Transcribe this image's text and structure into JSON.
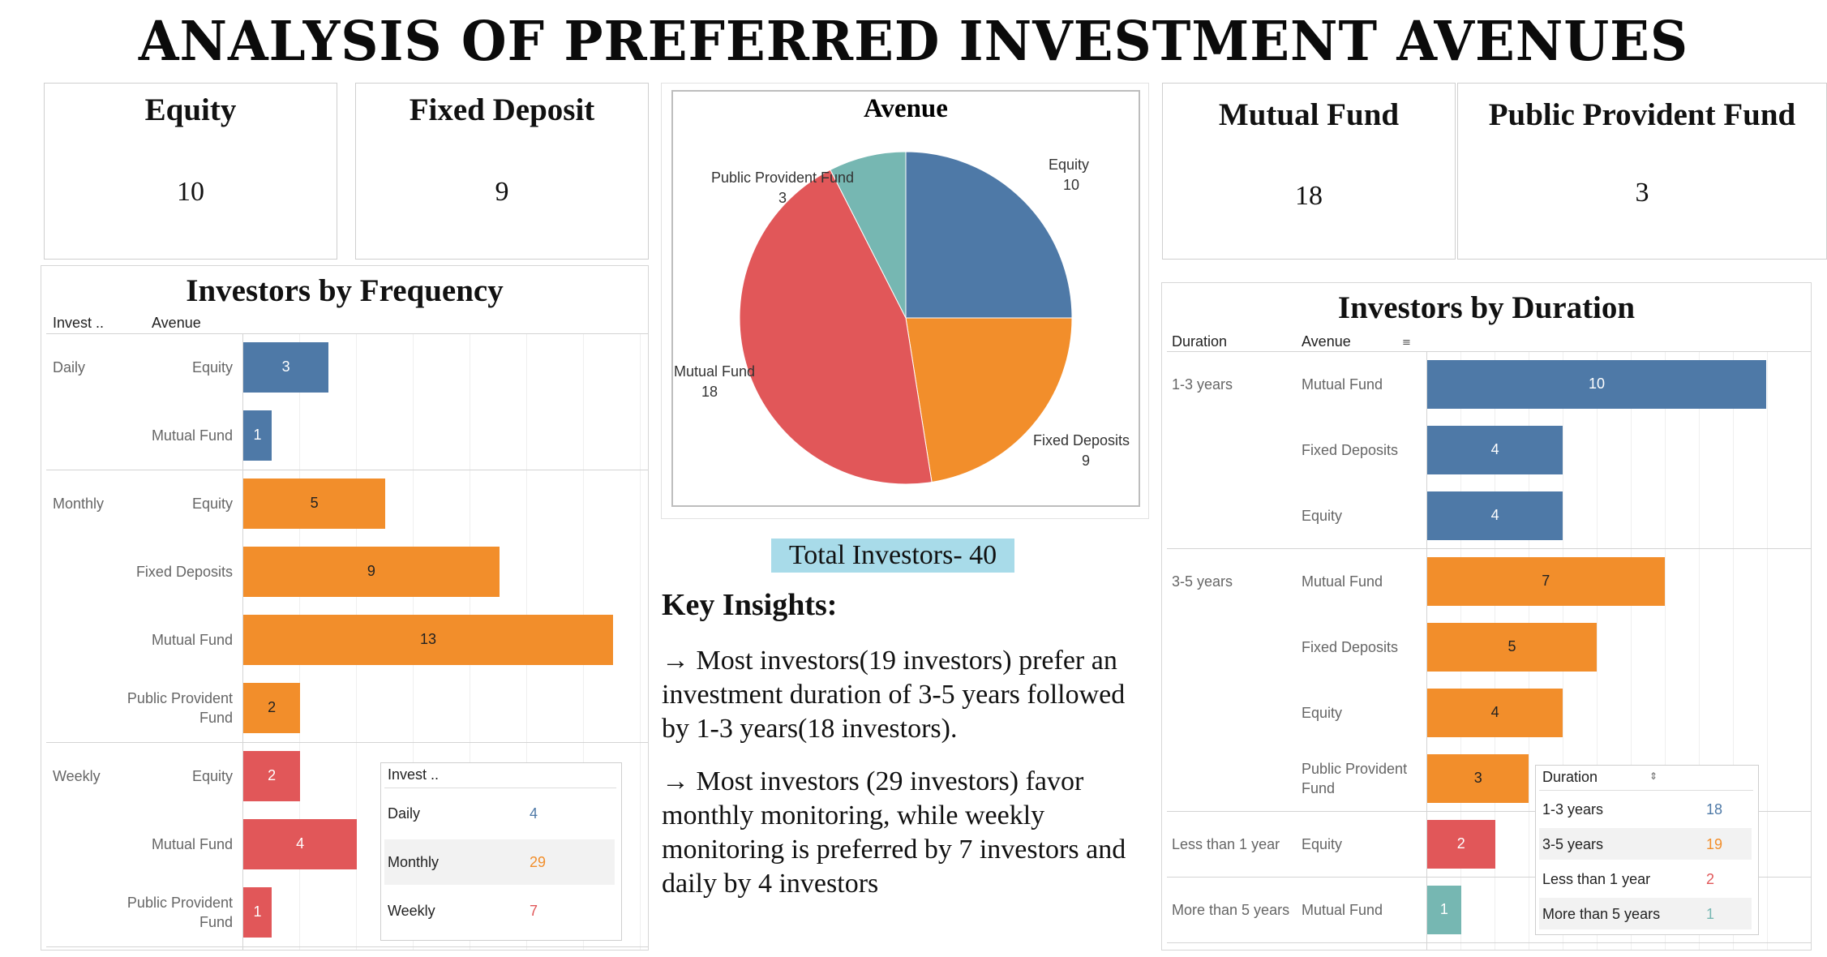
{
  "title": "ANALYSIS OF PREFERRED INVESTMENT AVENUES",
  "kpis": [
    {
      "label": "Equity",
      "value": "10"
    },
    {
      "label": "Fixed Deposit",
      "value": "9"
    },
    {
      "label": "Mutual Fund",
      "value": "18"
    },
    {
      "label": "Public Provident Fund",
      "value": "3"
    }
  ],
  "colors": {
    "blue": "#4e79a7",
    "orange": "#f28e2b",
    "red": "#e15759",
    "teal": "#76b7b2",
    "legend_blue": "#4e79a7",
    "legend_orange": "#f28e2b",
    "legend_red": "#e15759",
    "legend_teal": "#76b7b2"
  },
  "frequency_panel": {
    "title": "Investors by Frequency",
    "col_headers": [
      "Invest ..",
      "Avenue"
    ],
    "legend_header": "Invest ..",
    "legend": [
      {
        "label": "Daily",
        "value": "4"
      },
      {
        "label": "Monthly",
        "value": "29"
      },
      {
        "label": "Weekly",
        "value": "7"
      }
    ]
  },
  "duration_panel": {
    "title": "Investors by Duration",
    "col_headers": [
      "Duration",
      "Avenue"
    ],
    "legend_header": "Duration",
    "legend": [
      {
        "label": "1-3 years",
        "value": "18"
      },
      {
        "label": "3-5 years",
        "value": "19"
      },
      {
        "label": "Less than 1 year",
        "value": "2"
      },
      {
        "label": "More than 5 years",
        "value": "1"
      }
    ]
  },
  "summary": {
    "total": "Total Investors- 40",
    "insights_title": "Key Insights:",
    "insights": [
      "→ Most investors(19 investors) prefer an investment duration of 3-5 years followed by 1-3 years(18 investors).",
      "→ Most investors (29 investors) favor monthly monitoring, while weekly monitoring is preferred by 7 investors and daily by 4 investors"
    ]
  },
  "chart_data": [
    {
      "type": "pie",
      "title": "Avenue",
      "slices": [
        {
          "label": "Equity",
          "value": 10
        },
        {
          "label": "Fixed Deposits",
          "value": 9
        },
        {
          "label": "Mutual Fund",
          "value": 18
        },
        {
          "label": "Public Provident Fund",
          "value": 3
        }
      ]
    },
    {
      "type": "bar",
      "orientation": "horizontal",
      "title": "Investors by Frequency",
      "xlim": [
        0,
        13
      ],
      "groups": [
        {
          "name": "Daily",
          "color": "blue",
          "bars": [
            {
              "label": "Equity",
              "value": 3
            },
            {
              "label": "Mutual Fund",
              "value": 1
            }
          ]
        },
        {
          "name": "Monthly",
          "color": "orange",
          "bars": [
            {
              "label": "Equity",
              "value": 5
            },
            {
              "label": "Fixed Deposits",
              "value": 9
            },
            {
              "label": "Mutual Fund",
              "value": 13
            },
            {
              "label": "Public Provident Fund",
              "value": 2
            }
          ]
        },
        {
          "name": "Weekly",
          "color": "red",
          "bars": [
            {
              "label": "Equity",
              "value": 2
            },
            {
              "label": "Mutual Fund",
              "value": 4
            },
            {
              "label": "Public Provident Fund",
              "value": 1
            }
          ]
        }
      ]
    },
    {
      "type": "bar",
      "orientation": "horizontal",
      "title": "Investors by Duration",
      "xlim": [
        0,
        10
      ],
      "groups": [
        {
          "name": "1-3 years",
          "color": "blue",
          "bars": [
            {
              "label": "Mutual Fund",
              "value": 10
            },
            {
              "label": "Fixed Deposits",
              "value": 4
            },
            {
              "label": "Equity",
              "value": 4
            }
          ]
        },
        {
          "name": "3-5 years",
          "color": "orange",
          "bars": [
            {
              "label": "Mutual Fund",
              "value": 7
            },
            {
              "label": "Fixed Deposits",
              "value": 5
            },
            {
              "label": "Equity",
              "value": 4
            },
            {
              "label": "Public Provident Fund",
              "value": 3
            }
          ]
        },
        {
          "name": "Less than 1 year",
          "color": "red",
          "bars": [
            {
              "label": "Equity",
              "value": 2
            }
          ]
        },
        {
          "name": "More than 5 years",
          "color": "teal",
          "bars": [
            {
              "label": "Mutual Fund",
              "value": 1
            }
          ]
        }
      ]
    }
  ]
}
